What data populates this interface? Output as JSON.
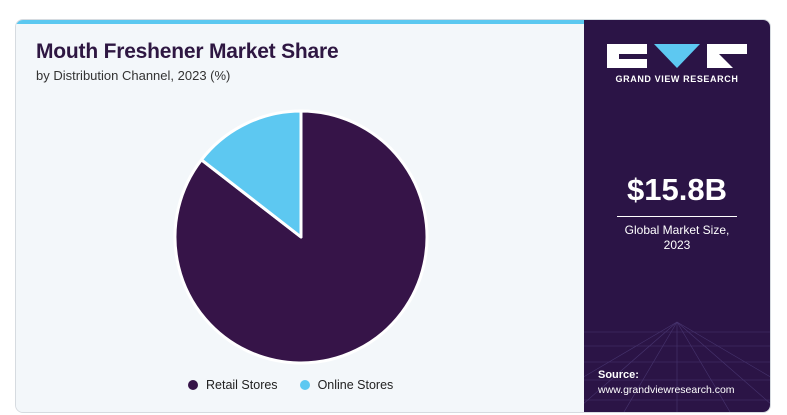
{
  "chart_data": {
    "type": "pie",
    "title": "Mouth Freshener Market Share",
    "subtitle": "by Distribution Channel, 2023 (%)",
    "categories": [
      "Retail Stores",
      "Online Stores"
    ],
    "values": [
      85.5,
      14.5
    ],
    "colors": [
      "#361448",
      "#5dc8f1"
    ],
    "legend_position": "bottom"
  },
  "sidebar": {
    "brand": "GRAND VIEW RESEARCH",
    "kpi_value": "$15.8B",
    "kpi_label_line1": "Global Market Size,",
    "kpi_label_line2": "2023",
    "source_label": "Source:",
    "source_url": "www.grandviewresearch.com"
  },
  "colors": {
    "sidebar_bg": "#2b1446",
    "accent": "#5bc8f0",
    "panel_bg": "#f3f7fa"
  }
}
